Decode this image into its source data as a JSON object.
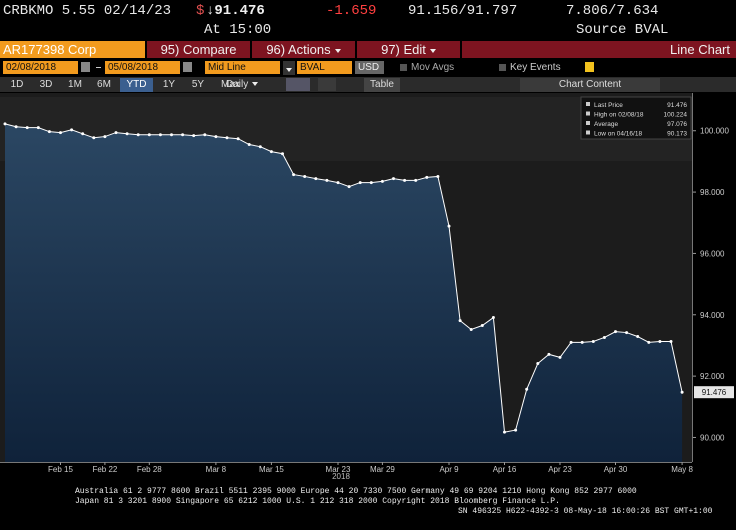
{
  "header": {
    "security": "CRBKMO 5.55 02/14/23",
    "currency": "$",
    "price": "↓91.476",
    "change": "-1.659",
    "bid_ask": "91.156/91.797",
    "yields": "7.806/7.634",
    "time": "At 15:00",
    "source": "Source BVAL"
  },
  "toolbar": {
    "ticker": "AR177398 Corp",
    "compare": "95) Compare",
    "actions": "96) Actions",
    "edit": "97) Edit",
    "view": "Line Chart",
    "start_date": "02/08/2018",
    "end_date": "05/08/2018",
    "field": "Mid Line",
    "pricing_source": "BVAL",
    "currency": "USD",
    "moving_averages": "Mov Avgs",
    "key_events": "Key Events",
    "ranges": [
      "1D",
      "3D",
      "1M",
      "6M",
      "YTD",
      "1Y",
      "5Y",
      "Max"
    ],
    "active_range": "YTD",
    "period": "Daily",
    "table": "Table",
    "chart_content": "Chart Content"
  },
  "chart_data": {
    "type": "line",
    "x_axis_label": "2018",
    "categories": [
      null,
      null,
      null,
      null,
      null,
      "Feb 15",
      null,
      null,
      null,
      "Feb 22",
      null,
      null,
      null,
      "Feb 28",
      null,
      null,
      null,
      null,
      null,
      "Mar 8",
      null,
      null,
      null,
      null,
      "Mar 15",
      null,
      null,
      null,
      null,
      null,
      "Mar 23",
      null,
      null,
      null,
      "Mar 29",
      null,
      null,
      null,
      null,
      null,
      "Apr 9",
      null,
      null,
      null,
      null,
      "Apr 16",
      null,
      null,
      null,
      null,
      "Apr 23",
      null,
      null,
      null,
      null,
      "Apr 30",
      null,
      null,
      null,
      null,
      null,
      "May 8"
    ],
    "series": [
      {
        "name": "Last Price",
        "color": "#ffffff",
        "values": [
          100.224,
          100.13,
          100.1,
          100.1,
          99.97,
          99.94,
          100.03,
          99.9,
          99.77,
          99.81,
          99.94,
          99.9,
          99.87,
          99.87,
          99.87,
          99.87,
          99.87,
          99.84,
          99.87,
          99.81,
          99.77,
          99.74,
          99.55,
          99.48,
          99.32,
          99.25,
          98.57,
          98.51,
          98.44,
          98.38,
          98.31,
          98.18,
          98.31,
          98.31,
          98.35,
          98.44,
          98.38,
          98.38,
          98.48,
          98.51,
          96.89,
          93.81,
          93.52,
          93.65,
          93.91,
          90.173,
          90.24,
          91.57,
          92.41,
          92.71,
          92.61,
          93.1,
          93.1,
          93.13,
          93.26,
          93.45,
          93.42,
          93.29,
          93.1,
          93.13,
          93.13,
          91.476
        ]
      }
    ],
    "high_label": "High on 02/08/18",
    "average_label": "Average",
    "average": 97.076,
    "low_label": "Low on 04/16/18",
    "ylim": [
      89.2,
      101.1
    ],
    "yticks": [
      {
        "value": 90,
        "label": "90.000"
      },
      {
        "value": 92,
        "label": "92.000"
      },
      {
        "value": 94,
        "label": "94.000"
      },
      {
        "value": 96,
        "label": "96.000"
      },
      {
        "value": 98,
        "label": "98.000"
      },
      {
        "value": 100,
        "label": "100.000"
      }
    ],
    "grid": false,
    "legend": "upper right",
    "area_fill": true
  },
  "footer": {
    "line1": "Australia 61 2 9777 8600 Brazil 5511 2395 9000 Europe 44 20 7330 7500 Germany 49 69 9204 1210 Hong Kong 852 2977 6000",
    "line2": "Japan 81 3 3201 8900         Singapore 65 6212 1000         U.S. 1 212 318 2000         Copyright 2018 Bloomberg Finance L.P.",
    "line3": "SN 496325 H622-4392-3 08-May-18 16:00:26 BST  GMT+1:00"
  }
}
